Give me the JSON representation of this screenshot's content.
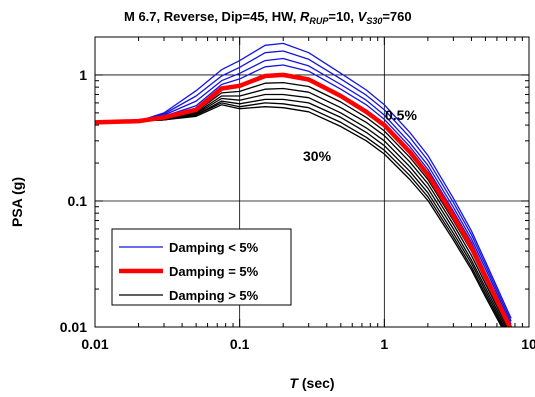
{
  "chart_data": {
    "type": "line",
    "title": "M 6.7, Reverse, Dip=45, HW,",
    "title_r_main": "R",
    "title_r_sub": "RUP",
    "title_r_val": "=10,",
    "title_v_main": "V",
    "title_v_sub": "S30",
    "title_v_val": "=760",
    "xlabel_italic": "T",
    "xlabel_rest": " (sec)",
    "ylabel": "PSA (g)",
    "xscale": "log",
    "yscale": "log",
    "xlim": [
      0.01,
      10
    ],
    "ylim": [
      0.01,
      2
    ],
    "grid": true,
    "x_tick_labels": [
      {
        "value": 0.01,
        "label": "0.01"
      },
      {
        "value": 0.1,
        "label": "0.1"
      },
      {
        "value": 1,
        "label": "1"
      },
      {
        "value": 10,
        "label": "10"
      }
    ],
    "y_tick_labels": [
      {
        "value": 0.01,
        "label": "0.01"
      },
      {
        "value": 0.1,
        "label": "0.1"
      },
      {
        "value": 1,
        "label": "1"
      }
    ],
    "annotations": [
      {
        "text": "0.5%",
        "x": 1.3,
        "y": 0.5
      },
      {
        "text": "30%",
        "x": 0.5,
        "y": 0.21
      }
    ],
    "legend": {
      "position": "lower-left",
      "entries": [
        {
          "label": "Damping < 5%",
          "color": "#1414e6",
          "width": 1.3
        },
        {
          "label": "Damping = 5%",
          "color": "#ff0000",
          "width": 4.5
        },
        {
          "label": "Damping > 5%",
          "color": "#000000",
          "width": 1.3
        }
      ]
    },
    "periods": [
      0.01,
      0.02,
      0.03,
      0.05,
      0.075,
      0.1,
      0.15,
      0.2,
      0.3,
      0.5,
      0.75,
      1,
      1.5,
      2,
      3,
      4,
      5,
      7.5
    ],
    "series": [
      {
        "damping": 0.5,
        "color": "#1414e6",
        "values": [
          0.42,
          0.43,
          0.5,
          0.75,
          1.1,
          1.3,
          1.72,
          1.78,
          1.5,
          1.03,
          0.76,
          0.58,
          0.35,
          0.23,
          0.105,
          0.058,
          0.033,
          0.0118
        ]
      },
      {
        "damping": 1,
        "color": "#1414e6",
        "values": [
          0.42,
          0.43,
          0.49,
          0.68,
          0.98,
          1.15,
          1.5,
          1.55,
          1.33,
          0.93,
          0.69,
          0.53,
          0.32,
          0.21,
          0.097,
          0.054,
          0.031,
          0.0112
        ]
      },
      {
        "damping": 2,
        "color": "#1414e6",
        "values": [
          0.42,
          0.43,
          0.48,
          0.62,
          0.9,
          1.03,
          1.3,
          1.35,
          1.18,
          0.84,
          0.63,
          0.48,
          0.29,
          0.192,
          0.089,
          0.05,
          0.029,
          0.0106
        ]
      },
      {
        "damping": 3,
        "color": "#1414e6",
        "values": [
          0.42,
          0.43,
          0.47,
          0.57,
          0.84,
          0.93,
          1.16,
          1.2,
          1.07,
          0.77,
          0.58,
          0.445,
          0.27,
          0.178,
          0.083,
          0.047,
          0.027,
          0.0101
        ]
      },
      {
        "damping": 5,
        "color": "#ff0000",
        "values": [
          0.42,
          0.43,
          0.46,
          0.53,
          0.78,
          0.82,
          0.98,
          1.0,
          0.92,
          0.68,
          0.51,
          0.4,
          0.245,
          0.162,
          0.076,
          0.043,
          0.025,
          0.0096
        ]
      },
      {
        "damping": 7,
        "color": "#000000",
        "values": [
          0.42,
          0.43,
          0.45,
          0.51,
          0.72,
          0.74,
          0.86,
          0.87,
          0.81,
          0.61,
          0.46,
          0.36,
          0.222,
          0.148,
          0.07,
          0.04,
          0.0235,
          0.0091
        ]
      },
      {
        "damping": 10,
        "color": "#000000",
        "values": [
          0.42,
          0.43,
          0.45,
          0.5,
          0.68,
          0.68,
          0.77,
          0.78,
          0.73,
          0.55,
          0.42,
          0.33,
          0.204,
          0.137,
          0.065,
          0.037,
          0.022,
          0.0087
        ]
      },
      {
        "damping": 15,
        "color": "#000000",
        "values": [
          0.42,
          0.43,
          0.44,
          0.49,
          0.65,
          0.63,
          0.7,
          0.7,
          0.66,
          0.5,
          0.38,
          0.3,
          0.187,
          0.126,
          0.06,
          0.034,
          0.0205,
          0.0083
        ]
      },
      {
        "damping": 20,
        "color": "#000000",
        "values": [
          0.42,
          0.43,
          0.44,
          0.48,
          0.62,
          0.59,
          0.64,
          0.64,
          0.6,
          0.46,
          0.35,
          0.275,
          0.172,
          0.116,
          0.0555,
          0.032,
          0.0193,
          0.0079
        ]
      },
      {
        "damping": 25,
        "color": "#000000",
        "values": [
          0.42,
          0.43,
          0.44,
          0.48,
          0.6,
          0.56,
          0.6,
          0.59,
          0.55,
          0.42,
          0.32,
          0.253,
          0.159,
          0.108,
          0.052,
          0.03,
          0.0182,
          0.0076
        ]
      },
      {
        "damping": 30,
        "color": "#000000",
        "values": [
          0.42,
          0.43,
          0.44,
          0.47,
          0.58,
          0.54,
          0.56,
          0.55,
          0.51,
          0.39,
          0.3,
          0.236,
          0.148,
          0.101,
          0.049,
          0.0285,
          0.0173,
          0.0073
        ]
      }
    ]
  }
}
